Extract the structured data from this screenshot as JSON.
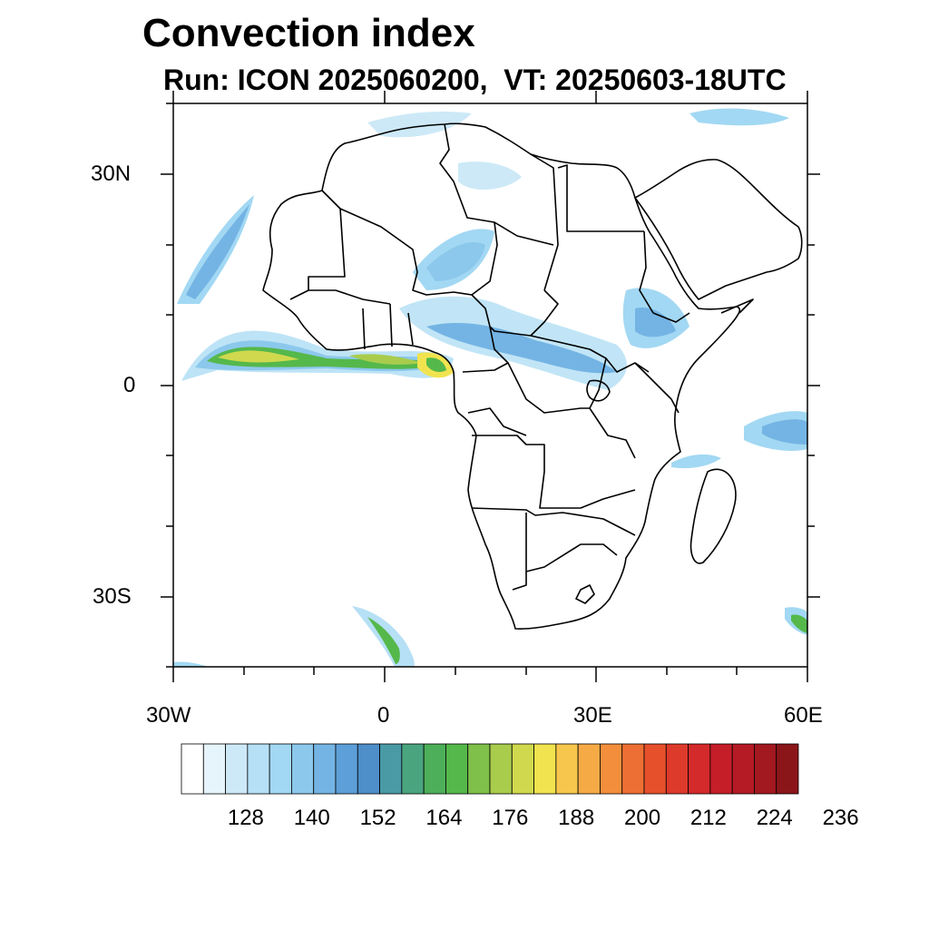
{
  "title": "Convection index",
  "subtitle": "Run: ICON 2025060200,  VT: 20250603-18UTC",
  "map": {
    "region": "Africa",
    "lon_range": [
      -30,
      60
    ],
    "lat_range": [
      -40,
      40
    ],
    "lat_tick_labels": [
      "30N",
      "0",
      "30S"
    ],
    "lon_tick_labels": [
      "30W",
      "0",
      "30E",
      "60E"
    ]
  },
  "colorbar": {
    "colors": [
      "#ffffff",
      "#e6f4fb",
      "#cde9f7",
      "#b6e0f5",
      "#a2d8f3",
      "#8cc8ec",
      "#74b4e4",
      "#5d9fd8",
      "#4e8ec9",
      "#4a9aa6",
      "#4aa57f",
      "#4daf5a",
      "#55b84b",
      "#7fc04a",
      "#a9cc4c",
      "#d0d94e",
      "#f1e34f",
      "#f7c64c",
      "#f6aa46",
      "#f38f3c",
      "#ee6f33",
      "#e6512c",
      "#de3a2b",
      "#d42a2b",
      "#c51e29",
      "#b51b25",
      "#a2191f",
      "#8b161a"
    ],
    "tick_labels": [
      "128",
      "140",
      "152",
      "164",
      "176",
      "188",
      "200",
      "212",
      "224",
      "236"
    ]
  }
}
